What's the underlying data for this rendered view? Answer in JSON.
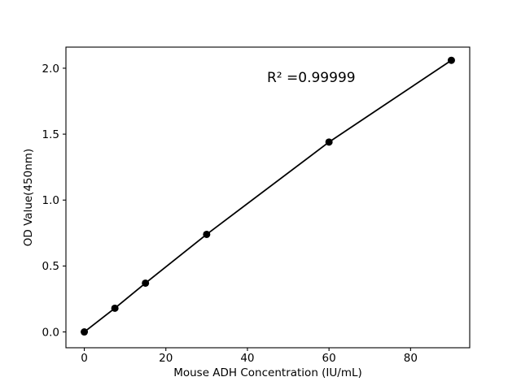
{
  "chart_data": {
    "type": "line",
    "title": "",
    "xlabel": "Mouse ADH Concentration (IU/mL)",
    "ylabel": "OD Value(450nm)",
    "annotation": "R² =0.99999",
    "x": [
      0,
      7.5,
      15,
      30,
      60,
      90
    ],
    "y": [
      0.0,
      0.18,
      0.37,
      0.74,
      1.44,
      2.06
    ],
    "xticks": [
      0,
      20,
      40,
      60,
      80
    ],
    "xtick_labels": [
      "0",
      "20",
      "40",
      "60",
      "80"
    ],
    "yticks": [
      0.0,
      0.5,
      1.0,
      1.5,
      2.0
    ],
    "ytick_labels": [
      "0.0",
      "0.5",
      "1.0",
      "1.5",
      "2.0"
    ],
    "xlim": [
      -4.5,
      94.5
    ],
    "ylim": [
      -0.12,
      2.16
    ],
    "grid": false,
    "legend": "none",
    "line_color": "#000000",
    "marker_color": "#000000",
    "axis_color": "#000000",
    "background_color": "#ffffff"
  }
}
